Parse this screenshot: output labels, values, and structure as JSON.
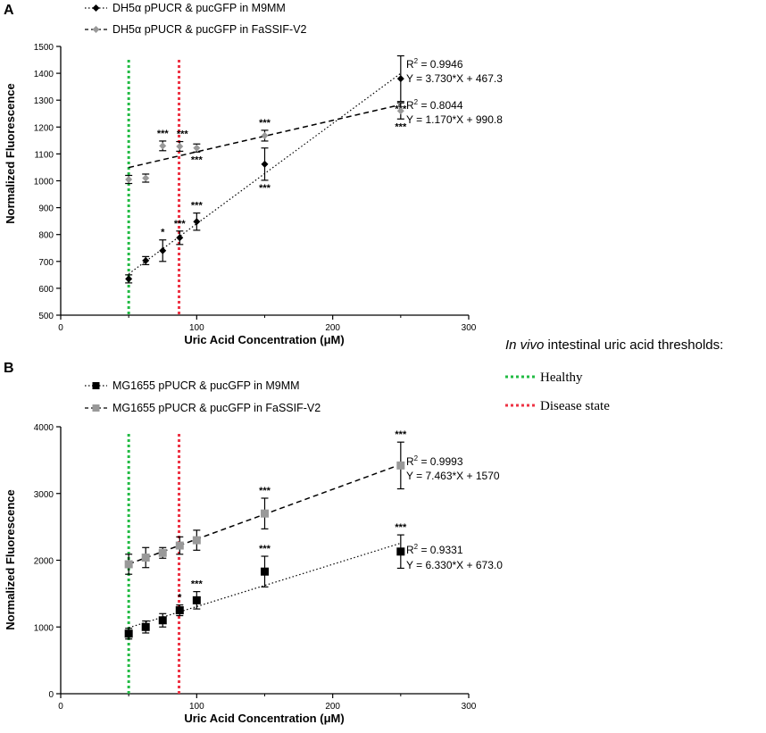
{
  "chart_data": [
    {
      "panel_label": "A",
      "type": "scatter",
      "xlabel": "Uric Acid Concentration (μM)",
      "ylabel": "Normalized Fluorescence",
      "xlim": [
        0,
        300
      ],
      "ylim": [
        500,
        1500
      ],
      "xticks": [
        0,
        100,
        200,
        300
      ],
      "yticks": [
        500,
        600,
        700,
        800,
        900,
        1000,
        1100,
        1200,
        1300,
        1400,
        1500
      ],
      "series": [
        {
          "name": "DH5α pPUCR & pucGFP in M9MM",
          "color": "#000000",
          "marker": "diamond",
          "line_style": "dotted",
          "x": [
            50,
            62.5,
            75,
            87.5,
            100,
            150,
            250
          ],
          "y": [
            635,
            703,
            740,
            788,
            848,
            1062,
            1380
          ],
          "err": [
            15,
            15,
            40,
            25,
            32,
            60,
            85
          ],
          "annotations": [
            "",
            "",
            "*",
            "***",
            "***",
            "***",
            "***"
          ],
          "fit": {
            "slope": 3.73,
            "intercept": 467.3,
            "x_range": [
              50,
              250
            ]
          },
          "r2_prefix": "R",
          "r2_sup": "2",
          "r2_text": " = 0.9946",
          "eq_text": "Y = 3.730*X + 467.3"
        },
        {
          "name": "DH5α pPUCR & pucGFP in FaSSIF-V2",
          "color": "#999999",
          "marker": "diamond",
          "line_style": "dashed",
          "x": [
            50,
            62.5,
            75,
            87.5,
            100,
            150,
            250
          ],
          "y": [
            1005,
            1010,
            1130,
            1128,
            1122,
            1168,
            1260
          ],
          "err": [
            15,
            15,
            18,
            18,
            15,
            20,
            30
          ],
          "annotations": [
            "",
            "",
            "***",
            "***",
            "***",
            "***",
            "***"
          ],
          "fit": {
            "slope": 1.17,
            "intercept": 990.8,
            "x_range": [
              50,
              250
            ]
          },
          "r2_prefix": "R",
          "r2_sup": "2",
          "r2_text": " = 0.8044",
          "eq_text": "Y = 1.170*X + 990.8"
        }
      ],
      "threshold_lines": [
        {
          "name": "Healthy",
          "x": 50,
          "color": "#22bb44"
        },
        {
          "name": "Disease state",
          "x": 87,
          "color": "#ee3344"
        }
      ]
    },
    {
      "panel_label": "B",
      "type": "scatter",
      "xlabel": "Uric Acid Concentration (μM)",
      "ylabel": "Normalized Fluorescence",
      "xlim": [
        0,
        300
      ],
      "ylim": [
        0,
        4000
      ],
      "xticks": [
        0,
        100,
        200,
        300
      ],
      "yticks": [
        0,
        1000,
        2000,
        3000,
        4000
      ],
      "series": [
        {
          "name": "MG1655 pPUCR & pucGFP in M9MM",
          "color": "#000000",
          "marker": "square",
          "line_style": "dotted",
          "x": [
            50,
            62.5,
            75,
            87.5,
            100,
            150,
            250
          ],
          "y": [
            900,
            1000,
            1100,
            1250,
            1400,
            1830,
            2130
          ],
          "err": [
            80,
            90,
            100,
            80,
            130,
            230,
            250
          ],
          "annotations": [
            "",
            "",
            "",
            "*",
            "***",
            "***",
            "***"
          ],
          "fit": {
            "slope": 6.33,
            "intercept": 673.0,
            "x_range": [
              50,
              250
            ]
          },
          "r2_prefix": "R",
          "r2_sup": "2",
          "r2_text": " = 0.9331",
          "eq_text": "Y = 6.330*X + 673.0"
        },
        {
          "name": "MG1655 pPUCR & pucGFP in FaSSIF-V2",
          "color": "#999999",
          "marker": "square",
          "line_style": "dashed",
          "x": [
            50,
            62.5,
            75,
            87.5,
            100,
            150,
            250
          ],
          "y": [
            1940,
            2040,
            2110,
            2220,
            2300,
            2700,
            3420
          ],
          "err": [
            150,
            150,
            80,
            130,
            150,
            230,
            350
          ],
          "annotations": [
            "",
            "",
            "",
            "",
            "",
            "***",
            "***"
          ],
          "fit": {
            "slope": 7.463,
            "intercept": 1570,
            "x_range": [
              50,
              250
            ]
          },
          "r2_prefix": "R",
          "r2_sup": "2",
          "r2_text": " = 0.9993",
          "eq_text": "Y = 7.463*X + 1570"
        }
      ],
      "threshold_lines": [
        {
          "name": "Healthy",
          "x": 50,
          "color": "#22bb44"
        },
        {
          "name": "Disease state",
          "x": 87,
          "color": "#ee3344"
        }
      ]
    }
  ],
  "threshold_legend": {
    "title_italic": "In vivo",
    "title_rest": " intestinal uric acid thresholds:",
    "items": [
      {
        "label": "Healthy",
        "color": "#22bb44"
      },
      {
        "label": "Disease state",
        "color": "#ee3344"
      }
    ]
  }
}
